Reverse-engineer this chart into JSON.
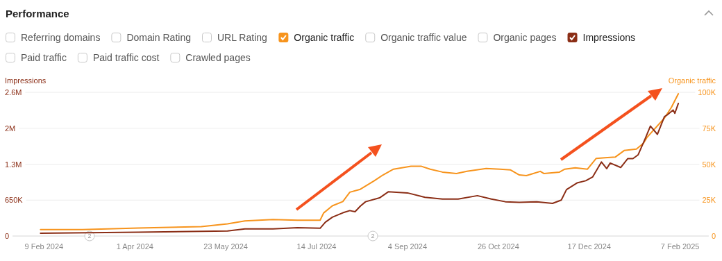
{
  "chart_data": {
    "type": "line",
    "title": "Performance",
    "ylabel": "Impressions",
    "y2label": "Organic traffic",
    "xlim": [
      "2024-01-18",
      "2025-02-27"
    ],
    "xticks": [
      {
        "value": "2024-02-09",
        "label": "9 Feb 2024"
      },
      {
        "value": "2024-04-01",
        "label": "1 Apr 2024"
      },
      {
        "value": "2024-05-23",
        "label": "23 May 2024"
      },
      {
        "value": "2024-07-14",
        "label": "14 Jul 2024"
      },
      {
        "value": "2024-09-04",
        "label": "4 Sep 2024"
      },
      {
        "value": "2024-10-26",
        "label": "26 Oct 2024"
      },
      {
        "value": "2024-12-17",
        "label": "17 Dec 2024"
      },
      {
        "value": "2025-02-07",
        "label": "7 Feb 2025"
      }
    ],
    "ylim": [
      0,
      2600000
    ],
    "yticks": [
      0,
      {
        "value": 650000,
        "label": "650K"
      },
      {
        "value": 1300000,
        "label": "1.3M"
      },
      {
        "value": 1950000,
        "label": "2M"
      },
      {
        "value": 2600000,
        "label": "2.6M"
      }
    ],
    "y2lim": [
      0,
      100000
    ],
    "y2ticks": [
      0,
      {
        "value": 25000,
        "label": "25K"
      },
      {
        "value": 50000,
        "label": "50K"
      },
      {
        "value": 75000,
        "label": "75K"
      },
      {
        "value": 100000,
        "label": "100K"
      }
    ],
    "grid": "y",
    "legend": "top left",
    "marker": "none",
    "line_style": "solid",
    "annotations": [
      "2",
      "2"
    ],
    "series": [
      {
        "name": "Referring domains"
      },
      {
        "name": "Domain Rating"
      },
      {
        "name": "URL Rating"
      },
      {
        "name": "Organic traffic",
        "color": "#f7941d",
        "axis": "y2",
        "x": [
          "2024-02-07",
          "2024-03-02",
          "2024-04-03",
          "2024-05-09",
          "2024-05-24",
          "2024-06-03",
          "2024-06-19",
          "2024-07-03",
          "2024-07-16",
          "2024-07-18",
          "2024-07-23",
          "2024-07-29",
          "2024-08-02",
          "2024-08-08",
          "2024-08-16",
          "2024-08-21",
          "2024-08-27",
          "2024-09-06",
          "2024-09-12",
          "2024-09-17",
          "2024-09-24",
          "2024-10-02",
          "2024-10-08",
          "2024-10-19",
          "2024-10-27",
          "2024-11-02",
          "2024-11-07",
          "2024-11-11",
          "2024-11-19",
          "2024-11-21",
          "2024-11-30",
          "2024-12-03",
          "2024-12-09",
          "2024-12-16",
          "2024-12-21",
          "2024-12-26",
          "2025-01-01",
          "2025-01-06",
          "2025-01-13",
          "2025-01-17",
          "2025-01-19",
          "2025-01-23",
          "2025-01-29",
          "2025-02-02",
          "2025-02-06"
        ],
        "values": [
          4500,
          4500,
          5500,
          6500,
          8500,
          10500,
          11500,
          11000,
          11000,
          16000,
          21000,
          24000,
          30500,
          32500,
          38500,
          42500,
          46500,
          48500,
          48500,
          46500,
          44500,
          43500,
          45000,
          47000,
          46500,
          46000,
          42500,
          42000,
          45000,
          43500,
          44500,
          46500,
          47500,
          46500,
          54000,
          54500,
          55000,
          59500,
          60500,
          64500,
          68500,
          74000,
          82000,
          89500,
          99000
        ]
      },
      {
        "name": "Organic traffic value"
      },
      {
        "name": "Organic pages"
      },
      {
        "name": "Impressions",
        "color": "#8b2e16",
        "x": [
          "2024-02-07",
          "2024-04-03",
          "2024-05-24",
          "2024-06-03",
          "2024-06-19",
          "2024-07-03",
          "2024-07-16",
          "2024-07-19",
          "2024-07-23",
          "2024-07-29",
          "2024-08-02",
          "2024-08-05",
          "2024-08-08",
          "2024-08-11",
          "2024-08-19",
          "2024-08-24",
          "2024-09-04",
          "2024-09-14",
          "2024-09-24",
          "2024-10-03",
          "2024-10-14",
          "2024-10-22",
          "2024-10-30",
          "2024-11-07",
          "2024-11-17",
          "2024-11-26",
          "2024-12-01",
          "2024-12-04",
          "2024-12-10",
          "2024-12-15",
          "2024-12-19",
          "2024-12-24",
          "2024-12-27",
          "2024-12-29",
          "2025-01-04",
          "2025-01-08",
          "2025-01-11",
          "2025-01-14",
          "2025-01-18",
          "2025-01-21",
          "2025-01-25",
          "2025-01-29",
          "2025-01-31",
          "2025-02-03",
          "2025-02-04",
          "2025-02-06"
        ],
        "values": [
          50000,
          70000,
          90000,
          130000,
          130000,
          150000,
          140000,
          250000,
          340000,
          420000,
          460000,
          440000,
          540000,
          620000,
          690000,
          800000,
          780000,
          700000,
          670000,
          670000,
          730000,
          670000,
          620000,
          610000,
          620000,
          590000,
          650000,
          840000,
          960000,
          1000000,
          1070000,
          1340000,
          1220000,
          1320000,
          1240000,
          1400000,
          1400000,
          1470000,
          1760000,
          1990000,
          1840000,
          2160000,
          2200000,
          2280000,
          2220000,
          2400000
        ]
      },
      {
        "name": "Paid traffic"
      },
      {
        "name": "Paid traffic cost"
      },
      {
        "name": "Crawled pages"
      }
    ]
  }
}
